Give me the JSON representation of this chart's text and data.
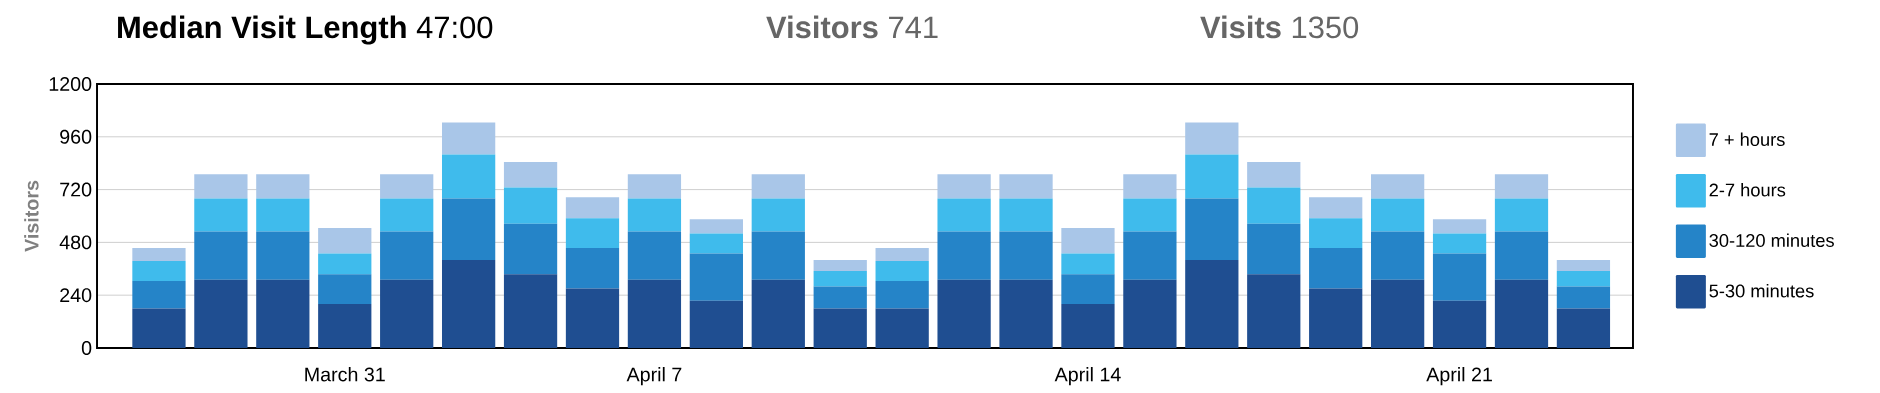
{
  "chart_data": {
    "type": "bar",
    "stacked": true,
    "title": "**Median Visit Length**   47:00",
    "annotations": [
      "**Visitors**   741",
      "**Visits**   1350"
    ],
    "ylabel": "Visitors",
    "categories": [
      null,
      null,
      null,
      "March 31",
      null,
      null,
      null,
      null,
      "April 7",
      null,
      null,
      null,
      null,
      null,
      null,
      "April 14",
      null,
      null,
      null,
      null,
      null,
      "April 21",
      null,
      null
    ],
    "series": [
      {
        "name": "5-30 minutes",
        "color": "#1f4e91",
        "values": [
          180,
          310,
          310,
          200,
          310,
          400,
          335,
          270,
          310,
          215,
          310,
          180,
          180,
          310,
          310,
          200,
          310,
          400,
          335,
          270,
          310,
          215,
          310,
          180
        ]
      },
      {
        "name": "30-120 minutes",
        "color": "#2584c8",
        "values": [
          125,
          220,
          220,
          135,
          220,
          280,
          230,
          185,
          220,
          215,
          220,
          100,
          125,
          220,
          220,
          135,
          220,
          280,
          230,
          185,
          220,
          215,
          220,
          100
        ]
      },
      {
        "name": "2-7 hours",
        "color": "#3fbbec",
        "values": [
          90,
          150,
          150,
          95,
          150,
          200,
          165,
          135,
          150,
          90,
          150,
          70,
          90,
          150,
          150,
          95,
          150,
          200,
          165,
          135,
          150,
          90,
          150,
          70
        ]
      },
      {
        "name": "7 + hours",
        "color": "#a9c6e8",
        "values": [
          60,
          110,
          110,
          115,
          110,
          145,
          115,
          95,
          110,
          65,
          110,
          50,
          60,
          110,
          110,
          115,
          110,
          145,
          115,
          95,
          110,
          65,
          110,
          50
        ]
      }
    ],
    "ylim": [
      0,
      1200
    ],
    "yticks": [
      0,
      240,
      480,
      720,
      960,
      1200
    ],
    "grid": "y",
    "legend": "right"
  }
}
